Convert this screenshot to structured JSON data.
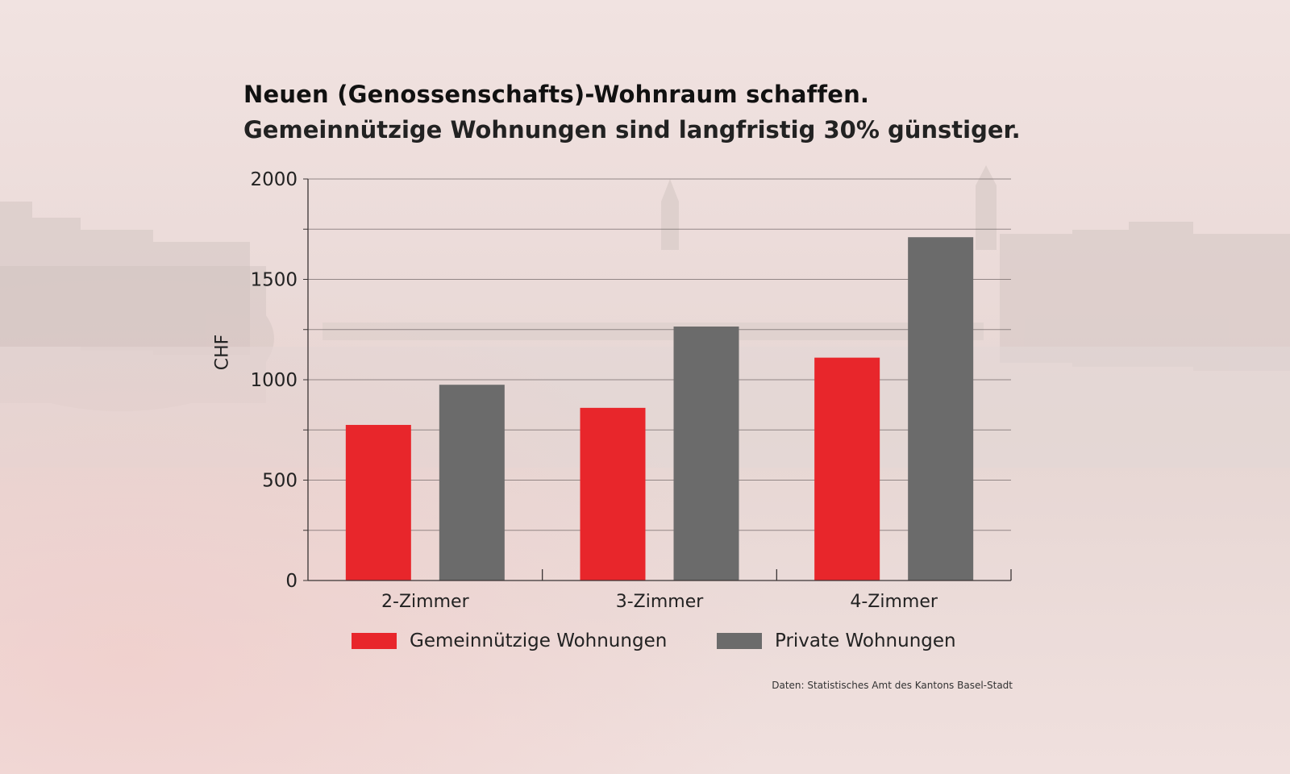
{
  "header": {
    "title": "Neuen (Genossenschafts)-Wohnraum schaffen.",
    "subtitle": "Gemeinnützige Wohnungen sind langfristig 30% günstiger."
  },
  "source_note": "Daten: Statistisches Amt des Kantons Basel-Stadt",
  "colors": {
    "gemeinnuetzig": "#e8262b",
    "privat": "#6b6b6b",
    "grid": "#6e6464",
    "axis": "#3a3434"
  },
  "chart_data": {
    "type": "bar",
    "title": "Neuen (Genossenschafts)-Wohnraum schaffen.",
    "subtitle": "Gemeinnützige Wohnungen sind langfristig 30% günstiger.",
    "xlabel": "",
    "ylabel": "CHF",
    "ylim": [
      0,
      2000
    ],
    "yticks": [
      0,
      500,
      1000,
      1500,
      2000
    ],
    "gridlines": [
      0,
      250,
      500,
      750,
      1000,
      1250,
      1500,
      1750,
      2000
    ],
    "grid": true,
    "legend_position": "bottom",
    "categories": [
      "2-Zimmer",
      "3-Zimmer",
      "4-Zimmer"
    ],
    "series": [
      {
        "name": "Gemeinnützige Wohnungen",
        "color": "#e8262b",
        "values": [
          775,
          860,
          1110
        ]
      },
      {
        "name": "Private Wohnungen",
        "color": "#6b6b6b",
        "values": [
          975,
          1265,
          1710
        ]
      }
    ]
  }
}
